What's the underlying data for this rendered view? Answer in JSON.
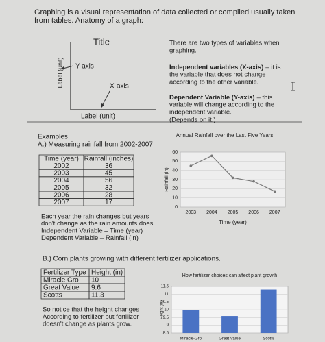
{
  "header": {
    "lines": [
      "Graphing is a visual representation of data collected or compiled usually taken",
      "from tables. Anatomy of a graph:"
    ]
  },
  "anatomy": {
    "title": "Title",
    "y_label": "Label (unit)",
    "y_axis": "Y-axis",
    "x_axis": "X-axis",
    "x_label": "Label (unit)"
  },
  "variables": {
    "intro": [
      "There are two types of variables when",
      "graphing."
    ],
    "independent": {
      "term": "Independent variables (X-axis)",
      "rest": "– it is",
      "lines": [
        "the variable that does not change",
        "according to the other variable."
      ]
    },
    "dependent": {
      "term": "Dependent Variable (Y-axis)",
      "rest": "– this",
      "lines": [
        "variable will change according to the",
        "independent variable.",
        "(Depends on it.)"
      ]
    }
  },
  "example_a": {
    "heading": "Examples",
    "title": "A.) Measuring rainfall from 2002-2007",
    "table": {
      "columns": [
        "Time (year)",
        "Rainfall (inches)"
      ],
      "rows": [
        [
          2002,
          36
        ],
        [
          2003,
          45
        ],
        [
          2004,
          56
        ],
        [
          2005,
          32
        ],
        [
          2006,
          28
        ],
        [
          2007,
          17
        ]
      ]
    },
    "notes": [
      "Each year the rain changes but years",
      "don't change as the rain amounts does.",
      "Independent Variable – Time (year)",
      "Dependent Variable – Rainfall (in)"
    ],
    "chart": {
      "type": "line",
      "title": "Annual Rainfall over the Last Five Years",
      "xlabel": "Time (year)",
      "ylabel": "Rainfall (in)",
      "categories": [
        "2003",
        "2004",
        "2005",
        "2006",
        "2007"
      ],
      "values": [
        45,
        56,
        32,
        28,
        17
      ],
      "color": "#777777",
      "ylim": [
        0,
        60
      ],
      "yticks": [
        0,
        10,
        20,
        30,
        40,
        50,
        60
      ],
      "grid": true
    }
  },
  "example_b": {
    "title": "B.) Corn plants growing with different fertilizer applications.",
    "table": {
      "columns": [
        "Fertilizer Type",
        "Height (in)"
      ],
      "rows": [
        [
          "Miracle Gro",
          10
        ],
        [
          "Great Value",
          9.6
        ],
        [
          "Scotts",
          11.3
        ]
      ]
    },
    "notes": [
      "So notice that the height changes",
      "According to fertilizer but fertilizer",
      "doesn't change as plants grow."
    ],
    "chart": {
      "type": "bar",
      "title": "How fertilizer choices can affect plant growth",
      "ylabel": "Height (in)",
      "categories": [
        "Miracle-Gro",
        "Great Value",
        "Scotts"
      ],
      "values": [
        10,
        9.6,
        11.3
      ],
      "color": "#4a72c4",
      "ylim": [
        8.5,
        11.5
      ],
      "yticks": [
        8.5,
        9,
        9.5,
        10,
        10.5,
        11,
        11.5
      ],
      "grid": true
    }
  }
}
